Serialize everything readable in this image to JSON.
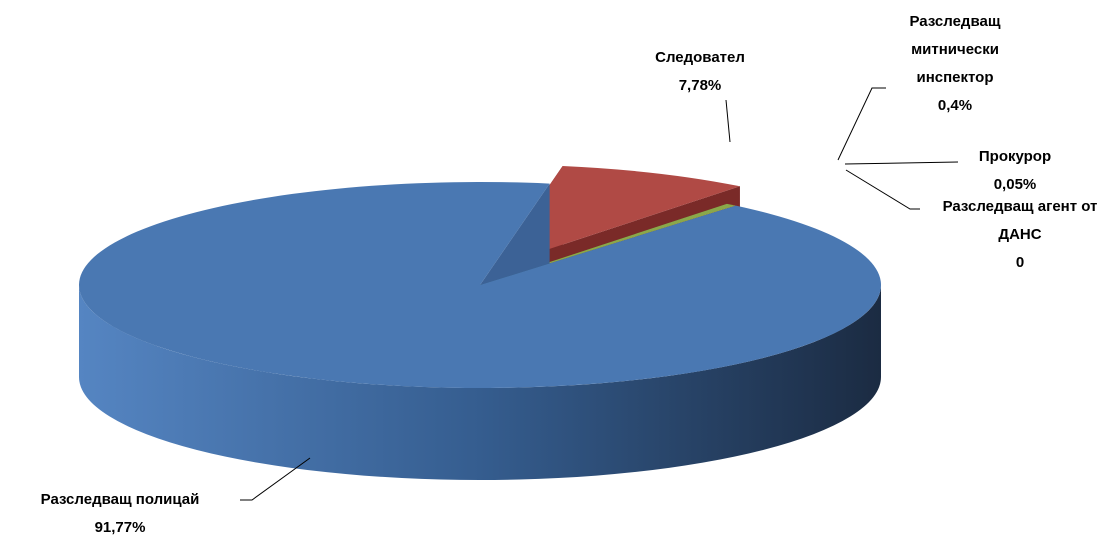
{
  "chart_data": {
    "type": "pie3d",
    "categories": [
      "Следовател",
      "Разследващ митнически инспектор",
      "Прокурор",
      "Разследващ агент от ДАНС",
      "Разследващ полицай"
    ],
    "values": [
      7.78,
      0.4,
      0.05,
      0,
      91.77
    ],
    "value_labels": [
      "7,78%",
      "0,4%",
      "0,05%",
      "0",
      "91,77%"
    ],
    "colors": [
      "#b04a45",
      "#8aa84a",
      "#c9b44a",
      "#2c5a6b",
      "#4a78b2"
    ]
  }
}
